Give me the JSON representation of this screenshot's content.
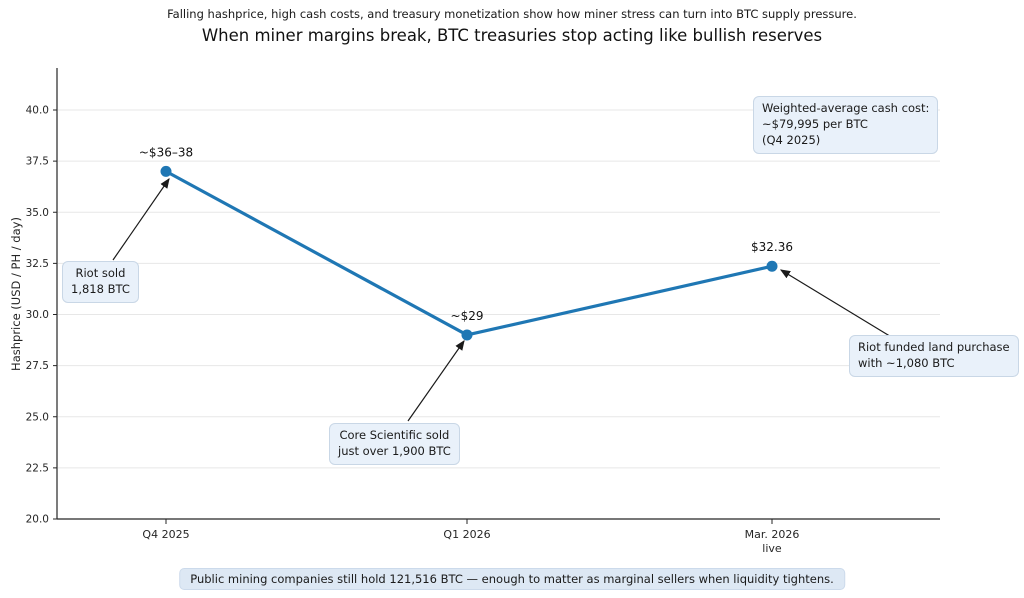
{
  "suptitle": "Falling hashprice, high cash costs, and treasury monetization show how miner stress can turn into BTC supply pressure.",
  "title": "When miner margins break, BTC treasuries stop acting like bullish reserves",
  "chart_data": {
    "type": "line",
    "categories": [
      "Q4 2025",
      "Q1 2026",
      "Mar. 2026 (live)"
    ],
    "values": [
      37.0,
      29.0,
      32.36
    ],
    "point_labels": [
      "~$36–38",
      "~$29",
      "$32.36"
    ],
    "x_tick_labels": [
      [
        "Q4 2025"
      ],
      [
        "Q1 2026"
      ],
      [
        "Mar. 2026",
        "live"
      ]
    ],
    "ylabel": "Hashprice (USD / PH / day)",
    "xlabel": "",
    "ylim": [
      20.0,
      40.0
    ],
    "yticks": [
      20.0,
      22.5,
      25.0,
      27.5,
      30.0,
      32.5,
      35.0,
      37.5,
      40.0
    ],
    "grid": true,
    "legend": "none",
    "line_color": "#1f77b4",
    "annotations": [
      {
        "text": "Riot sold\n1,818 BTC",
        "points_to": "Q4 2025 point"
      },
      {
        "text": "Core Scientific sold\njust over 1,900 BTC",
        "points_to": "Q1 2026 point"
      },
      {
        "text": "Riot funded land purchase\nwith ~1,080 BTC",
        "points_to": "Mar. 2026 point"
      },
      {
        "text": "Weighted-average cash cost:\n~$79,995 per BTC\n(Q4 2025)",
        "points_to": "none"
      }
    ],
    "footnote": "Public mining companies still hold 121,516 BTC — enough to matter as marginal sellers when liquidity tightens."
  }
}
